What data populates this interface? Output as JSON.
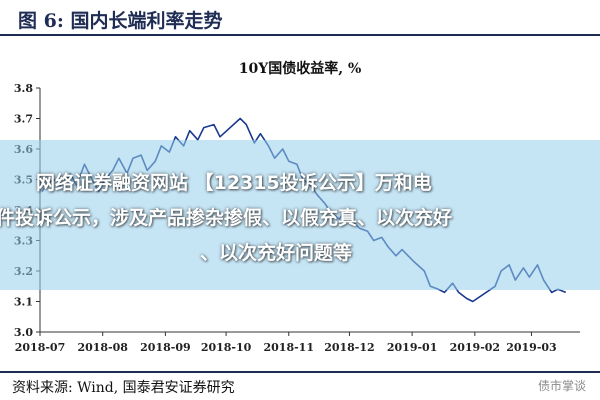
{
  "figure_title": "图 6:  国内长端利率走势",
  "source": "资料来源:  Wind, 国泰君安证券研究",
  "watermark": "债市掌谈",
  "overlay": {
    "line1": "网络证券融资网站 【12315投诉公示】万和电",
    "line2": "件投诉公示，涉及产品掺杂掺假、以假充真、以次充好",
    "line3": "、以次充好问题等"
  },
  "colors": {
    "line": "#1a3a8f",
    "rule": "#1f2d55",
    "overlay": "#96cdeb"
  },
  "chart_data": {
    "type": "line",
    "title": "10Y国债收益率, %",
    "xlabel": "",
    "ylabel": "",
    "ylim": [
      3.0,
      3.8
    ],
    "yticks": [
      "3.0",
      "3.1",
      "3.2",
      "3.3",
      "3.4",
      "3.5",
      "3.6",
      "3.7",
      "3.8"
    ],
    "xticks": [
      "2018-07",
      "2018-08",
      "2018-09",
      "2018-10",
      "2018-11",
      "2018-12",
      "2019-01",
      "2019-02",
      "2019-03"
    ],
    "grid": false,
    "legend": "none",
    "x": [
      "2018-07-02",
      "2018-07-05",
      "2018-07-09",
      "2018-07-12",
      "2018-07-16",
      "2018-07-19",
      "2018-07-23",
      "2018-07-26",
      "2018-07-30",
      "2018-08-02",
      "2018-08-06",
      "2018-08-09",
      "2018-08-13",
      "2018-08-16",
      "2018-08-20",
      "2018-08-23",
      "2018-08-27",
      "2018-08-30",
      "2018-09-03",
      "2018-09-06",
      "2018-09-10",
      "2018-09-13",
      "2018-09-17",
      "2018-09-20",
      "2018-09-25",
      "2018-09-28",
      "2018-10-08",
      "2018-10-11",
      "2018-10-15",
      "2018-10-18",
      "2018-10-22",
      "2018-10-25",
      "2018-10-29",
      "2018-11-01",
      "2018-11-05",
      "2018-11-08",
      "2018-11-12",
      "2018-11-15",
      "2018-11-19",
      "2018-11-22",
      "2018-11-26",
      "2018-11-29",
      "2018-12-03",
      "2018-12-06",
      "2018-12-10",
      "2018-12-13",
      "2018-12-17",
      "2018-12-20",
      "2018-12-24",
      "2018-12-27",
      "2019-01-02",
      "2019-01-07",
      "2019-01-10",
      "2019-01-14",
      "2019-01-17",
      "2019-01-21",
      "2019-01-24",
      "2019-01-28",
      "2019-01-31",
      "2019-02-11",
      "2019-02-14",
      "2019-02-18",
      "2019-02-21",
      "2019-02-25",
      "2019-02-28",
      "2019-03-04",
      "2019-03-07",
      "2019-03-11",
      "2019-03-14",
      "2019-03-18"
    ],
    "series": [
      {
        "values": [
          3.46,
          3.49,
          3.5,
          3.47,
          3.52,
          3.48,
          3.55,
          3.51,
          3.46,
          3.5,
          3.53,
          3.57,
          3.52,
          3.57,
          3.58,
          3.53,
          3.56,
          3.61,
          3.59,
          3.64,
          3.61,
          3.66,
          3.63,
          3.67,
          3.68,
          3.64,
          3.7,
          3.68,
          3.62,
          3.65,
          3.61,
          3.57,
          3.6,
          3.56,
          3.55,
          3.5,
          3.48,
          3.45,
          3.42,
          3.39,
          3.37,
          3.4,
          3.36,
          3.34,
          3.33,
          3.3,
          3.31,
          3.28,
          3.25,
          3.27,
          3.23,
          3.2,
          3.15,
          3.14,
          3.13,
          3.16,
          3.13,
          3.11,
          3.1,
          3.15,
          3.2,
          3.22,
          3.17,
          3.21,
          3.18,
          3.22,
          3.17,
          3.13,
          3.14,
          3.13
        ]
      }
    ]
  }
}
